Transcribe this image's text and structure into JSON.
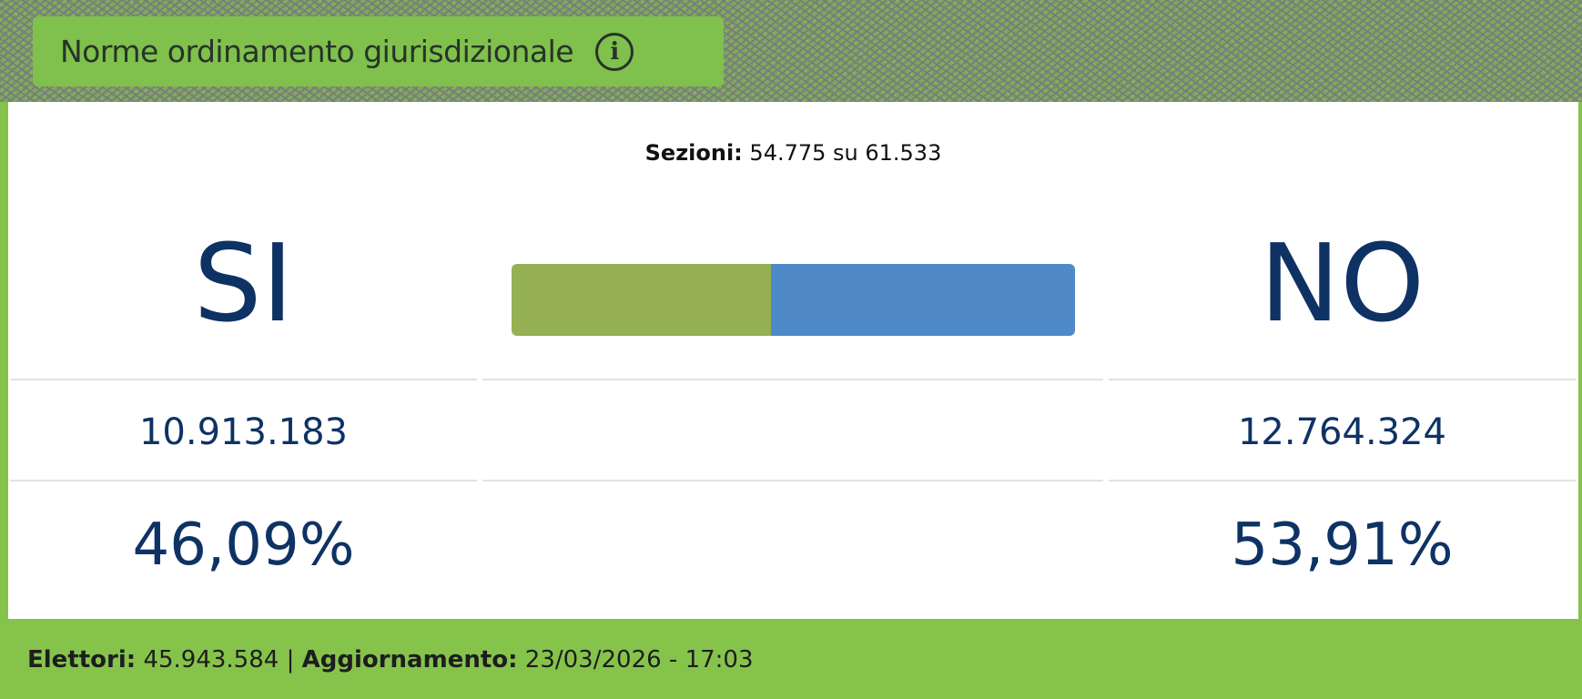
{
  "header": {
    "title": "Norme ordinamento giurisdizionale",
    "info_icon": "info-circle-icon"
  },
  "sezioni": {
    "label": "Sezioni:",
    "value": "54.775 su 61.533"
  },
  "si": {
    "label": "SI",
    "votes": "10.913.183",
    "percent": "46,09%",
    "color": "#95b153"
  },
  "no": {
    "label": "NO",
    "votes": "12.764.324",
    "percent": "53,91%",
    "color": "#4f89c8"
  },
  "bar": {
    "si_percent": 46.09,
    "no_percent": 53.91
  },
  "footer": {
    "elettori_label": "Elettori:",
    "elettori_value": "45.943.584",
    "separator": "|",
    "aggiornamento_label": "Aggiornamento:",
    "aggiornamento_value": "23/03/2026 - 17:03"
  }
}
